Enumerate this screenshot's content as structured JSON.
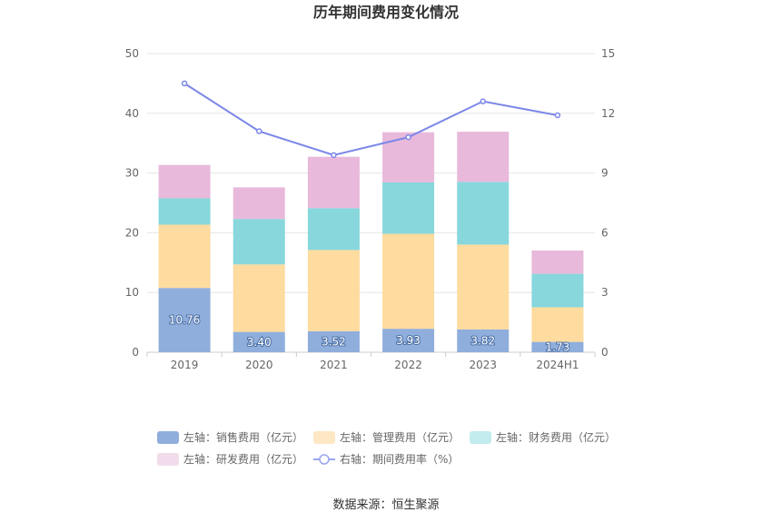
{
  "chart_data": {
    "type": "bar",
    "stacked": true,
    "title": "历年期间费用变化情况",
    "categories": [
      "2019",
      "2020",
      "2021",
      "2022",
      "2023",
      "2024H1"
    ],
    "series": [
      {
        "name": "左轴：销售费用（亿元）",
        "axis": "left",
        "color": "#8faedc",
        "values": [
          10.76,
          3.4,
          3.52,
          3.93,
          3.82,
          1.73
        ],
        "labels": [
          "10.76",
          "3.40",
          "3.52",
          "3.93",
          "3.82",
          "1.73"
        ]
      },
      {
        "name": "左轴：管理费用（亿元）",
        "axis": "left",
        "color": "#fedb9e",
        "values": [
          10.6,
          11.3,
          13.6,
          15.9,
          14.2,
          5.8
        ]
      },
      {
        "name": "左轴：财务费用（亿元）",
        "axis": "left",
        "color": "#87d7dc",
        "values": [
          4.4,
          7.6,
          7.0,
          8.6,
          10.5,
          5.6
        ]
      },
      {
        "name": "左轴：研发费用（亿元）",
        "axis": "left",
        "color": "#e8b9db",
        "values": [
          5.6,
          5.3,
          8.6,
          8.4,
          8.4,
          3.9
        ]
      },
      {
        "name": "右轴：期间费用率（%）",
        "axis": "right",
        "type": "line",
        "color": "#7b87e8",
        "values": [
          13.5,
          11.1,
          9.9,
          10.8,
          12.6,
          11.9
        ]
      }
    ],
    "y_left": {
      "min": 0,
      "max": 50,
      "ticks": [
        "0",
        "10",
        "20",
        "30",
        "40",
        "50"
      ]
    },
    "y_right": {
      "min": 0,
      "max": 15,
      "ticks": [
        "0",
        "3",
        "6",
        "9",
        "12",
        "15"
      ]
    },
    "grid": true,
    "legend_position": "bottom"
  },
  "legend_colors": {
    "sales": "#8faedc",
    "admin": "#fee7c5",
    "finance": "#c2ecee",
    "rnd": "#f2dcec",
    "rate": "#9aa5ef"
  },
  "source": "数据来源：恒生聚源"
}
